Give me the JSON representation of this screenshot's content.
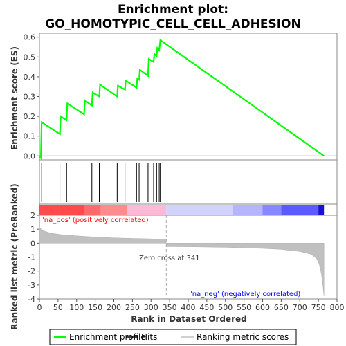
{
  "chart_data": {
    "type": "line",
    "title_line1": "Enrichment plot:",
    "title_line2": "GO_HOMOTYPIC_CELL_CELL_ADHESION",
    "es_panel": {
      "ylabel": "Enrichment score (ES)",
      "ylim": [
        -0.02,
        0.62
      ],
      "yticks": [
        "0.0",
        "0.1",
        "0.2",
        "0.3",
        "0.4",
        "0.5",
        "0.6"
      ],
      "ytick_values": [
        0.0,
        0.1,
        0.2,
        0.3,
        0.4,
        0.5,
        0.6
      ],
      "series": [
        {
          "name": "Enrichment profile",
          "color": "#00ff00",
          "points": [
            [
              0,
              0.0
            ],
            [
              4,
              -0.01
            ],
            [
              6,
              0.17
            ],
            [
              55,
              0.11
            ],
            [
              57,
              0.2
            ],
            [
              73,
              0.18
            ],
            [
              75,
              0.265
            ],
            [
              120,
              0.21
            ],
            [
              122,
              0.28
            ],
            [
              141,
              0.255
            ],
            [
              143,
              0.32
            ],
            [
              161,
              0.3
            ],
            [
              163,
              0.36
            ],
            [
              209,
              0.3
            ],
            [
              211,
              0.355
            ],
            [
              230,
              0.335
            ],
            [
              232,
              0.38
            ],
            [
              261,
              0.345
            ],
            [
              263,
              0.39
            ],
            [
              268,
              0.385
            ],
            [
              270,
              0.435
            ],
            [
              292,
              0.405
            ],
            [
              294,
              0.49
            ],
            [
              307,
              0.475
            ],
            [
              309,
              0.515
            ],
            [
              315,
              0.505
            ],
            [
              317,
              0.545
            ],
            [
              322,
              0.535
            ],
            [
              325,
              0.585
            ],
            [
              765,
              0.0
            ]
          ]
        }
      ]
    },
    "hits": [
      6,
      55,
      73,
      120,
      141,
      161,
      209,
      230,
      261,
      268,
      292,
      307,
      315,
      322,
      325
    ],
    "hits_color": "#000000",
    "ranking_panel": {
      "ylabel": "Ranked list metric (PreRanked)",
      "ylim": [
        -4,
        2
      ],
      "yticks": [
        "2",
        "1",
        "0",
        "-1",
        "-2",
        "-3",
        "-4"
      ],
      "ytick_values": [
        2,
        1,
        0,
        -1,
        -2,
        -3,
        -4
      ],
      "bar_color": "#c0c0c0",
      "metric_profile": [
        [
          0,
          1.15
        ],
        [
          5,
          1.0
        ],
        [
          15,
          0.85
        ],
        [
          30,
          0.72
        ],
        [
          60,
          0.6
        ],
        [
          100,
          0.52
        ],
        [
          150,
          0.44
        ],
        [
          200,
          0.38
        ],
        [
          250,
          0.34
        ],
        [
          300,
          0.31
        ],
        [
          340,
          0.28
        ],
        [
          341,
          -0.25
        ],
        [
          400,
          -0.26
        ],
        [
          500,
          -0.3
        ],
        [
          600,
          -0.38
        ],
        [
          650,
          -0.45
        ],
        [
          700,
          -0.6
        ],
        [
          730,
          -0.8
        ],
        [
          745,
          -1.1
        ],
        [
          752,
          -1.5
        ],
        [
          758,
          -2.2
        ],
        [
          762,
          -3.0
        ],
        [
          765,
          -3.8
        ]
      ],
      "zero_cross_label": "Zero cross at 341",
      "zero_cross": 341,
      "pos_label": "'na_pos' (positively correlated)",
      "neg_label": "'na_neg' (negatively correlated)",
      "pos_color": "#ff0000",
      "neg_color": "#0000ff"
    },
    "xlabel": "Rank in Dataset Ordered",
    "xlim": [
      0,
      800
    ],
    "xticks": [
      "0",
      "50",
      "100",
      "150",
      "200",
      "250",
      "300",
      "350",
      "400",
      "450",
      "500",
      "550",
      "600",
      "650",
      "700",
      "750",
      "800"
    ],
    "xtick_values": [
      0,
      50,
      100,
      150,
      200,
      250,
      300,
      350,
      400,
      450,
      500,
      550,
      600,
      650,
      700,
      750,
      800
    ],
    "x_max_rank": 765,
    "heatmap_segments": [
      {
        "from": 0,
        "to": 120,
        "color": "#ff4a4a"
      },
      {
        "from": 120,
        "to": 165,
        "color": "#ff6b6b"
      },
      {
        "from": 165,
        "to": 235,
        "color": "#ff8c8c"
      },
      {
        "from": 235,
        "to": 341,
        "color": "#ffb8d8"
      },
      {
        "from": 341,
        "to": 520,
        "color": "#d2d2ff"
      },
      {
        "from": 520,
        "to": 600,
        "color": "#b4b4ff"
      },
      {
        "from": 600,
        "to": 650,
        "color": "#8787ff"
      },
      {
        "from": 650,
        "to": 750,
        "color": "#5a5aff"
      },
      {
        "from": 750,
        "to": 765,
        "color": "#1c10d0"
      }
    ],
    "legend": [
      {
        "label": "Enrichment profile",
        "kind": "line",
        "color": "#00ff00"
      },
      {
        "label": "Hits",
        "kind": "line",
        "color": "#000000"
      },
      {
        "label": "Ranking metric scores",
        "kind": "line",
        "color": "#c0c0c0"
      }
    ]
  }
}
